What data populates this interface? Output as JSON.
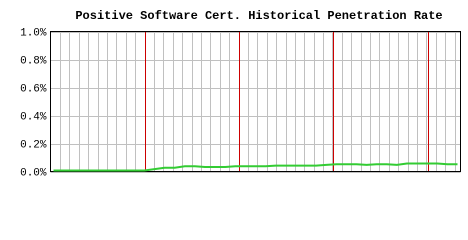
{
  "chart_data": {
    "type": "line",
    "title": "Positive Software Cert. Historical Penetration Rate",
    "values": [
      0,
      0,
      0,
      0,
      0,
      0,
      0,
      0,
      0,
      0,
      0.01,
      0.02,
      0.02,
      0.03,
      0.03,
      0.025,
      0.025,
      0.025,
      0.03,
      0.03,
      0.03,
      0.03,
      0.035,
      0.035,
      0.035,
      0.035,
      0.035,
      0.04,
      0.045,
      0.045,
      0.045,
      0.04,
      0.045,
      0.045,
      0.04,
      0.05,
      0.05,
      0.05,
      0.05,
      0.045,
      0.045
    ],
    "color": "#33cc33",
    "ylim": [
      0,
      1.0
    ],
    "yticks": [
      {
        "value": 0,
        "label": "0.0%"
      },
      {
        "value": 0.2,
        "label": "0.2%"
      },
      {
        "value": 0.4,
        "label": "0.4%"
      },
      {
        "value": 0.6,
        "label": "0.6%"
      },
      {
        "value": 0.8,
        "label": "0.8%"
      },
      {
        "value": 1.0,
        "label": "1.0%"
      }
    ],
    "grid": true
  }
}
